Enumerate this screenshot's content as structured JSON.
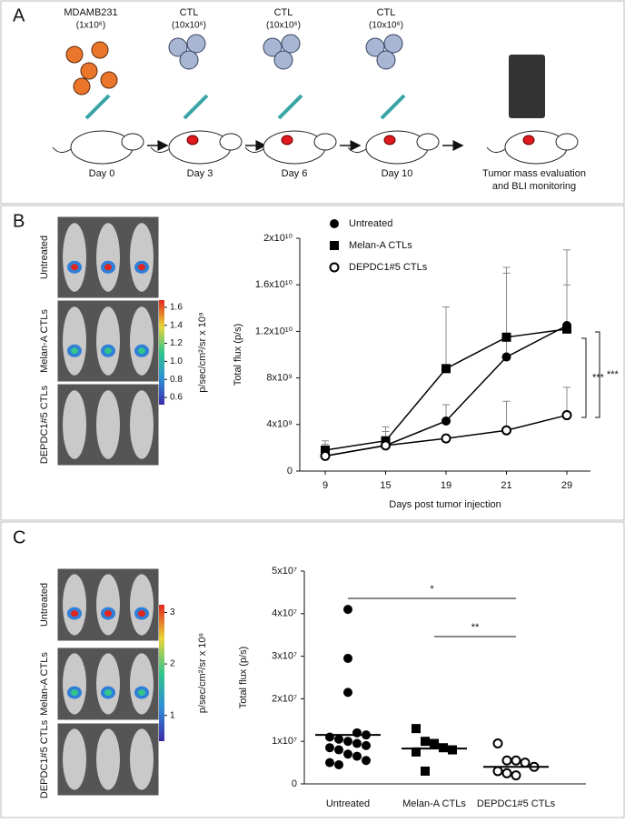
{
  "panel_labels": [
    "A",
    "B",
    "C"
  ],
  "panel_a": {
    "cells": [
      {
        "label": "MDAMB231",
        "dose": "(1x10⁶)",
        "day": "Day 0"
      },
      {
        "label": "CTL",
        "dose": "(10x10⁶)",
        "day": "Day 3"
      },
      {
        "label": "CTL",
        "dose": "(10x10⁶)",
        "day": "Day 6"
      },
      {
        "label": "CTL",
        "dose": "(10x10⁶)",
        "day": "Day 10"
      }
    ],
    "final": [
      "Tumor mass evaluation",
      "and BLI monitoring"
    ]
  },
  "imaging": [
    {
      "rows": [
        "Untreated",
        "Melan-A CTLs",
        "DEPDC1#5 CTLs"
      ],
      "colorbar_ticks": [
        1.6,
        1.4,
        1.2,
        {
          "value": 1,
          "label": "1.0"
        },
        0.8,
        0.6
      ],
      "colorbar_lim": [
        0.52,
        1.68
      ],
      "colorbar_label": "p/sec/cm²/sr x 10⁹"
    },
    {
      "rows": [
        "Untreated",
        "Melan-A CTLs",
        "DEPDC1#5 CTLs"
      ],
      "colorbar_ticks": [
        3,
        2,
        1
      ],
      "colorbar_lim": [
        0.5,
        3.15
      ],
      "colorbar_label": "p/sec/cm²/sr x 10⁸"
    }
  ],
  "chart_data": [
    {
      "type": "line",
      "x_label": "Days post tumor injection",
      "y_label": "Total flux (p/s)",
      "categories": [
        9,
        15,
        19,
        21,
        29
      ],
      "series": [
        {
          "name": "Untreated",
          "marker": "circle-filled",
          "color": "#000000",
          "values": [
            1300000000,
            2200000000,
            4300000000,
            9800000000,
            12500000000
          ],
          "errors": [
            1000000000,
            1200000000,
            1400000000,
            7700000000,
            3500000000
          ]
        },
        {
          "name": "Melan-A CTLs",
          "marker": "square-filled",
          "color": "#000000",
          "values": [
            1800000000,
            2600000000,
            8800000000,
            11500000000,
            12200000000
          ],
          "errors": [
            800000000,
            1200000000,
            5300000000,
            5500000000,
            6800000000
          ]
        },
        {
          "name": "DEPDC1#5 CTLs",
          "marker": "circle-open",
          "color": "#000000",
          "values": [
            1300000000,
            2200000000,
            2800000000,
            3500000000,
            4800000000
          ],
          "errors": [
            500000000,
            300000000,
            300000000,
            2500000000,
            2400000000
          ]
        }
      ],
      "ylim": [
        0,
        20000000000
      ],
      "yticks": [
        0,
        {
          "value": 4000000000,
          "label": "4x10⁹"
        },
        {
          "value": 8000000000,
          "label": "8x10⁹"
        },
        {
          "value": 12000000000,
          "label": "1.2x10¹⁰"
        },
        {
          "value": 16000000000,
          "label": "1.6x10¹⁰"
        },
        {
          "value": 20000000000,
          "label": "2x10¹⁰"
        }
      ],
      "significance": [
        "***",
        "***"
      ]
    },
    {
      "type": "strip",
      "y_label": "Total flux (p/s)",
      "categories": [
        "Untreated",
        "Melan-A CTLs",
        "DEPDC1#5 CTLs"
      ],
      "groups": [
        {
          "marker": "circle-filled",
          "mean": 11500000,
          "values": [
            41000000,
            29500000,
            21500000,
            12000000,
            11500000,
            11000000,
            10500000,
            10000000,
            9500000,
            9000000,
            8500000,
            8000000,
            7000000,
            6500000,
            5500000,
            5000000,
            4500000
          ]
        },
        {
          "marker": "square-filled",
          "mean": 8300000,
          "values": [
            13000000,
            10000000,
            9500000,
            8500000,
            8000000,
            7500000,
            3000000
          ]
        },
        {
          "marker": "circle-open",
          "mean": 4000000,
          "values": [
            9500000,
            5500000,
            5500000,
            5000000,
            4000000,
            3000000,
            2500000,
            2000000
          ]
        }
      ],
      "ylim": [
        0,
        50000000
      ],
      "yticks": [
        0,
        {
          "value": 10000000,
          "label": "1x10⁷"
        },
        {
          "value": 20000000,
          "label": "2x10⁷"
        },
        {
          "value": 30000000,
          "label": "3x10⁷"
        },
        {
          "value": 40000000,
          "label": "4x10⁷"
        },
        {
          "value": 50000000,
          "label": "5x10⁷"
        }
      ],
      "significance": [
        "*",
        "**"
      ]
    }
  ]
}
